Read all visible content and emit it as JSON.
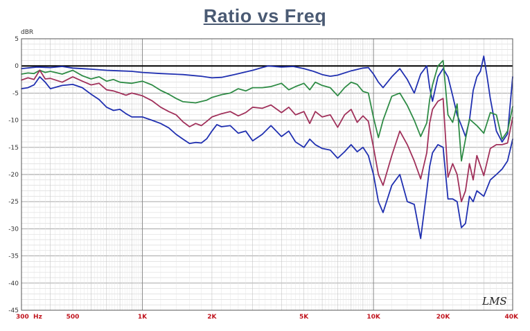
{
  "chart_data": {
    "type": "line",
    "title": "Ratio vs Freq",
    "ylabel": "dBR",
    "xlabel": "",
    "xscale": "log",
    "xlim": [
      300,
      40000
    ],
    "ylim": [
      -45,
      5
    ],
    "grid": true,
    "legend": "none",
    "reference_line": 0,
    "xtick_labels": [
      {
        "value": 300,
        "label": "300  Hz"
      },
      {
        "value": 500,
        "label": "500"
      },
      {
        "value": 1000,
        "label": "1K"
      },
      {
        "value": 2000,
        "label": "2K"
      },
      {
        "value": 5000,
        "label": "5K"
      },
      {
        "value": 10000,
        "label": "10K"
      },
      {
        "value": 20000,
        "label": "20K"
      },
      {
        "value": 40000,
        "label": "40K"
      }
    ],
    "ytick_labels": [
      {
        "value": 5,
        "label": "5"
      },
      {
        "value": 0,
        "label": "0"
      },
      {
        "value": -5,
        "label": "-5"
      },
      {
        "value": -10,
        "label": "-10"
      },
      {
        "value": -15,
        "label": "-15"
      },
      {
        "value": -20,
        "label": "-20"
      },
      {
        "value": -25,
        "label": "-25"
      },
      {
        "value": -30,
        "label": "-30"
      },
      {
        "value": -35,
        "label": "-35"
      },
      {
        "value": -40,
        "label": "-40"
      },
      {
        "value": -45,
        "label": "-45"
      }
    ],
    "series": [
      {
        "color": "#1f2fb0",
        "points": [
          [
            300,
            -0.5
          ],
          [
            350,
            -0.2
          ],
          [
            400,
            -0.3
          ],
          [
            450,
            -0.1
          ],
          [
            500,
            -0.4
          ],
          [
            600,
            -0.6
          ],
          [
            700,
            -0.8
          ],
          [
            800,
            -0.9
          ],
          [
            900,
            -1.0
          ],
          [
            1000,
            -1.2
          ],
          [
            1200,
            -1.4
          ],
          [
            1500,
            -1.6
          ],
          [
            1800,
            -1.9
          ],
          [
            2000,
            -2.2
          ],
          [
            2200,
            -2.1
          ],
          [
            2500,
            -1.6
          ],
          [
            3000,
            -0.8
          ],
          [
            3500,
            0.0
          ],
          [
            4000,
            -0.2
          ],
          [
            4500,
            -0.1
          ],
          [
            5000,
            -0.5
          ],
          [
            5500,
            -1.0
          ],
          [
            6000,
            -1.6
          ],
          [
            6500,
            -1.9
          ],
          [
            7000,
            -1.7
          ],
          [
            8000,
            -0.9
          ],
          [
            9000,
            -0.4
          ],
          [
            9500,
            -0.3
          ],
          [
            10000,
            -1.5
          ],
          [
            10500,
            -3.0
          ],
          [
            11000,
            -4.0
          ],
          [
            12000,
            -2.0
          ],
          [
            13000,
            -0.5
          ],
          [
            14000,
            -2.5
          ],
          [
            15000,
            -5.0
          ],
          [
            16000,
            -1.5
          ],
          [
            17000,
            0.0
          ],
          [
            17500,
            -4.0
          ],
          [
            18000,
            -6.5
          ],
          [
            19000,
            -2.0
          ],
          [
            20000,
            -0.5
          ],
          [
            21000,
            -2.0
          ],
          [
            22000,
            -5.5
          ],
          [
            23000,
            -9.0
          ],
          [
            24000,
            -11.0
          ],
          [
            25000,
            -13.0
          ],
          [
            26000,
            -10.0
          ],
          [
            27000,
            -4.5
          ],
          [
            28000,
            -2.0
          ],
          [
            29000,
            -1.0
          ],
          [
            30000,
            1.8
          ],
          [
            31000,
            -2.0
          ],
          [
            32000,
            -6.0
          ],
          [
            34000,
            -12.0
          ],
          [
            36000,
            -14.0
          ],
          [
            38000,
            -12.5
          ],
          [
            40000,
            -2.0
          ]
        ]
      },
      {
        "color": "#2e8b45",
        "points": [
          [
            300,
            -1.5
          ],
          [
            320,
            -1.3
          ],
          [
            340,
            -1.4
          ],
          [
            360,
            -0.8
          ],
          [
            380,
            -1.2
          ],
          [
            400,
            -1.0
          ],
          [
            450,
            -1.5
          ],
          [
            500,
            -0.8
          ],
          [
            550,
            -1.8
          ],
          [
            600,
            -2.4
          ],
          [
            650,
            -2.0
          ],
          [
            700,
            -2.8
          ],
          [
            750,
            -2.5
          ],
          [
            800,
            -3.0
          ],
          [
            900,
            -3.2
          ],
          [
            1000,
            -2.8
          ],
          [
            1100,
            -3.5
          ],
          [
            1200,
            -4.5
          ],
          [
            1300,
            -5.2
          ],
          [
            1400,
            -6.0
          ],
          [
            1500,
            -6.6
          ],
          [
            1700,
            -6.8
          ],
          [
            1900,
            -6.3
          ],
          [
            2000,
            -5.8
          ],
          [
            2200,
            -5.3
          ],
          [
            2400,
            -5.0
          ],
          [
            2600,
            -4.2
          ],
          [
            2800,
            -4.6
          ],
          [
            3000,
            -4.0
          ],
          [
            3300,
            -4.0
          ],
          [
            3600,
            -3.8
          ],
          [
            4000,
            -3.2
          ],
          [
            4300,
            -4.4
          ],
          [
            4600,
            -3.8
          ],
          [
            5000,
            -3.2
          ],
          [
            5300,
            -4.4
          ],
          [
            5600,
            -3.0
          ],
          [
            6000,
            -3.6
          ],
          [
            6500,
            -4.0
          ],
          [
            7000,
            -5.5
          ],
          [
            7500,
            -4.0
          ],
          [
            8000,
            -3.0
          ],
          [
            8500,
            -3.4
          ],
          [
            9000,
            -4.7
          ],
          [
            9500,
            -5.0
          ],
          [
            10000,
            -9.5
          ],
          [
            10500,
            -13.2
          ],
          [
            11000,
            -10.0
          ],
          [
            12000,
            -5.6
          ],
          [
            13000,
            -5.0
          ],
          [
            14000,
            -7.3
          ],
          [
            15000,
            -10.0
          ],
          [
            16000,
            -13.0
          ],
          [
            17000,
            -10.5
          ],
          [
            17500,
            -6.2
          ],
          [
            18000,
            -3.5
          ],
          [
            19000,
            0.0
          ],
          [
            20000,
            1.0
          ],
          [
            21000,
            -9.0
          ],
          [
            22000,
            -10.4
          ],
          [
            23000,
            -7.0
          ],
          [
            24000,
            -17.5
          ],
          [
            25000,
            -13.5
          ],
          [
            26000,
            -9.8
          ],
          [
            28000,
            -11.0
          ],
          [
            30000,
            -12.4
          ],
          [
            32000,
            -8.6
          ],
          [
            34000,
            -9.0
          ],
          [
            36000,
            -13.5
          ],
          [
            38000,
            -12.0
          ],
          [
            40000,
            -7.5
          ]
        ]
      },
      {
        "color": "#a0305a",
        "points": [
          [
            300,
            -2.6
          ],
          [
            320,
            -2.2
          ],
          [
            340,
            -2.5
          ],
          [
            360,
            -0.8
          ],
          [
            380,
            -2.4
          ],
          [
            400,
            -2.3
          ],
          [
            450,
            -3.0
          ],
          [
            500,
            -2.0
          ],
          [
            550,
            -2.8
          ],
          [
            600,
            -3.5
          ],
          [
            650,
            -3.2
          ],
          [
            700,
            -4.4
          ],
          [
            750,
            -4.6
          ],
          [
            800,
            -5.0
          ],
          [
            850,
            -5.4
          ],
          [
            900,
            -5.0
          ],
          [
            1000,
            -5.5
          ],
          [
            1100,
            -6.4
          ],
          [
            1200,
            -7.6
          ],
          [
            1300,
            -8.4
          ],
          [
            1400,
            -9.0
          ],
          [
            1500,
            -10.3
          ],
          [
            1600,
            -11.2
          ],
          [
            1700,
            -10.6
          ],
          [
            1800,
            -11.0
          ],
          [
            1900,
            -10.2
          ],
          [
            2000,
            -9.4
          ],
          [
            2200,
            -8.8
          ],
          [
            2400,
            -8.4
          ],
          [
            2600,
            -9.2
          ],
          [
            2800,
            -8.6
          ],
          [
            3000,
            -7.6
          ],
          [
            3300,
            -7.8
          ],
          [
            3600,
            -7.2
          ],
          [
            4000,
            -8.6
          ],
          [
            4300,
            -7.6
          ],
          [
            4600,
            -9.0
          ],
          [
            5000,
            -8.4
          ],
          [
            5300,
            -10.6
          ],
          [
            5600,
            -8.4
          ],
          [
            6000,
            -9.4
          ],
          [
            6500,
            -9.0
          ],
          [
            7000,
            -11.3
          ],
          [
            7500,
            -9.0
          ],
          [
            8000,
            -8.0
          ],
          [
            8500,
            -10.4
          ],
          [
            9000,
            -9.2
          ],
          [
            9500,
            -10.2
          ],
          [
            10000,
            -15.0
          ],
          [
            10500,
            -20.0
          ],
          [
            11000,
            -22.0
          ],
          [
            12000,
            -16.5
          ],
          [
            13000,
            -12.0
          ],
          [
            14000,
            -14.5
          ],
          [
            15000,
            -17.5
          ],
          [
            16000,
            -20.8
          ],
          [
            17000,
            -16.0
          ],
          [
            17500,
            -10.5
          ],
          [
            18000,
            -8.0
          ],
          [
            19000,
            -6.5
          ],
          [
            20000,
            -6.0
          ],
          [
            21000,
            -20.5
          ],
          [
            22000,
            -18.0
          ],
          [
            23000,
            -20.0
          ],
          [
            24000,
            -25.0
          ],
          [
            25000,
            -23.0
          ],
          [
            26000,
            -18.0
          ],
          [
            27000,
            -21.0
          ],
          [
            28000,
            -16.5
          ],
          [
            30000,
            -20.2
          ],
          [
            32000,
            -15.2
          ],
          [
            34000,
            -14.5
          ],
          [
            36000,
            -14.5
          ],
          [
            38000,
            -14.2
          ],
          [
            40000,
            -9.5
          ]
        ]
      },
      {
        "color": "#1f2fb0",
        "points": [
          [
            300,
            -4.2
          ],
          [
            320,
            -4.0
          ],
          [
            340,
            -3.5
          ],
          [
            360,
            -2.0
          ],
          [
            380,
            -3.0
          ],
          [
            400,
            -4.2
          ],
          [
            450,
            -3.6
          ],
          [
            500,
            -3.4
          ],
          [
            550,
            -4.0
          ],
          [
            600,
            -5.2
          ],
          [
            650,
            -6.2
          ],
          [
            700,
            -7.6
          ],
          [
            750,
            -8.2
          ],
          [
            800,
            -8.0
          ],
          [
            850,
            -8.8
          ],
          [
            900,
            -9.4
          ],
          [
            1000,
            -9.4
          ],
          [
            1100,
            -10.0
          ],
          [
            1200,
            -10.6
          ],
          [
            1300,
            -11.4
          ],
          [
            1400,
            -12.6
          ],
          [
            1500,
            -13.5
          ],
          [
            1600,
            -14.3
          ],
          [
            1700,
            -14.1
          ],
          [
            1800,
            -14.2
          ],
          [
            1900,
            -13.4
          ],
          [
            2000,
            -12.0
          ],
          [
            2100,
            -10.8
          ],
          [
            2200,
            -11.2
          ],
          [
            2400,
            -11.0
          ],
          [
            2600,
            -12.4
          ],
          [
            2800,
            -12.0
          ],
          [
            3000,
            -13.8
          ],
          [
            3300,
            -12.6
          ],
          [
            3600,
            -11.0
          ],
          [
            4000,
            -13.0
          ],
          [
            4300,
            -12.0
          ],
          [
            4600,
            -14.0
          ],
          [
            5000,
            -15.0
          ],
          [
            5300,
            -13.5
          ],
          [
            5600,
            -14.5
          ],
          [
            6000,
            -15.2
          ],
          [
            6500,
            -15.5
          ],
          [
            7000,
            -17.0
          ],
          [
            7500,
            -15.8
          ],
          [
            8000,
            -14.5
          ],
          [
            8500,
            -15.8
          ],
          [
            9000,
            -15.0
          ],
          [
            9500,
            -16.5
          ],
          [
            10000,
            -20.0
          ],
          [
            10500,
            -25.0
          ],
          [
            11000,
            -27.0
          ],
          [
            12000,
            -22.0
          ],
          [
            13000,
            -20.0
          ],
          [
            14000,
            -25.0
          ],
          [
            15000,
            -25.5
          ],
          [
            16000,
            -31.8
          ],
          [
            17000,
            -23.0
          ],
          [
            17500,
            -18.5
          ],
          [
            18000,
            -16.0
          ],
          [
            19000,
            -14.5
          ],
          [
            20000,
            -15.0
          ],
          [
            21000,
            -24.5
          ],
          [
            22000,
            -24.5
          ],
          [
            23000,
            -25.0
          ],
          [
            24000,
            -29.8
          ],
          [
            25000,
            -29.0
          ],
          [
            26000,
            -24.0
          ],
          [
            27000,
            -25.0
          ],
          [
            28000,
            -23.0
          ],
          [
            30000,
            -24.0
          ],
          [
            32000,
            -21.0
          ],
          [
            34000,
            -20.0
          ],
          [
            36000,
            -19.0
          ],
          [
            38000,
            -17.5
          ],
          [
            40000,
            -13.5
          ]
        ]
      }
    ]
  },
  "watermark": "LMS"
}
